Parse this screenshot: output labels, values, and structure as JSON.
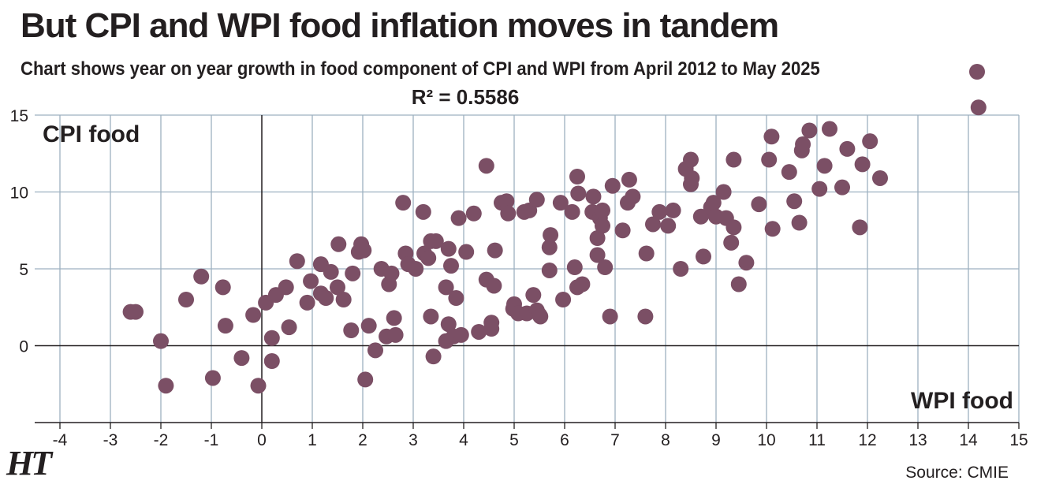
{
  "header": {
    "title": "But CPI and WPI food inflation moves in tandem",
    "subtitle": "Chart shows year on year growth in food component of CPI and WPI from April 2012 to May 2025",
    "r_squared": "R² = 0.5586"
  },
  "footer": {
    "logo": "HT",
    "source": "Source: CMIE"
  },
  "colors": {
    "dot": "#7b4f65",
    "grid": "#9db1c0",
    "axis": "#231f20"
  },
  "chart_data": {
    "type": "scatter",
    "title": "But CPI and WPI food inflation moves in tandem",
    "subtitle": "Chart shows year on year growth in food component of CPI and WPI from April 2012 to May 2025",
    "annotation": "R² = 0.5586",
    "xlabel": "WPI food",
    "ylabel": "CPI food",
    "xlim": [
      -4.5,
      15
    ],
    "ylim": [
      -5,
      15
    ],
    "xticks": [
      -4,
      -3,
      -2,
      -1,
      0,
      1,
      2,
      3,
      4,
      5,
      6,
      7,
      8,
      9,
      10,
      11,
      12,
      13,
      14,
      15
    ],
    "yticks": [
      0,
      5,
      10,
      15
    ],
    "grid": true,
    "legend": "none",
    "series": [
      {
        "points": [
          [
            -2.5,
            2.2
          ],
          [
            -2.6,
            2.2
          ],
          [
            -2.0,
            0.3
          ],
          [
            -1.9,
            -2.6
          ],
          [
            -1.5,
            3.0
          ],
          [
            -1.2,
            4.5
          ],
          [
            -0.97,
            -2.1
          ],
          [
            -0.77,
            3.8
          ],
          [
            -0.72,
            1.3
          ],
          [
            -0.4,
            -0.8
          ],
          [
            -0.17,
            2.0
          ],
          [
            -0.07,
            -2.6
          ],
          [
            0.08,
            2.8
          ],
          [
            0.2,
            0.5
          ],
          [
            0.2,
            -1.0
          ],
          [
            0.28,
            3.3
          ],
          [
            0.48,
            3.8
          ],
          [
            0.54,
            1.2
          ],
          [
            0.7,
            5.5
          ],
          [
            0.9,
            2.8
          ],
          [
            0.97,
            4.2
          ],
          [
            1.17,
            5.3
          ],
          [
            1.17,
            3.4
          ],
          [
            1.27,
            3.1
          ],
          [
            1.37,
            4.8
          ],
          [
            1.5,
            3.8
          ],
          [
            1.52,
            6.6
          ],
          [
            1.62,
            3.0
          ],
          [
            1.77,
            1.0
          ],
          [
            1.8,
            4.7
          ],
          [
            1.92,
            6.1
          ],
          [
            1.97,
            6.6
          ],
          [
            2.02,
            6.2
          ],
          [
            2.05,
            -2.2
          ],
          [
            2.12,
            1.3
          ],
          [
            2.25,
            -0.3
          ],
          [
            2.37,
            5.0
          ],
          [
            2.47,
            0.6
          ],
          [
            2.52,
            4.0
          ],
          [
            2.57,
            4.7
          ],
          [
            2.62,
            1.8
          ],
          [
            2.65,
            0.7
          ],
          [
            2.8,
            9.3
          ],
          [
            2.85,
            6.0
          ],
          [
            2.9,
            5.3
          ],
          [
            3.05,
            5.0
          ],
          [
            3.2,
            8.7
          ],
          [
            3.22,
            6.0
          ],
          [
            3.3,
            5.7
          ],
          [
            3.35,
            1.9
          ],
          [
            3.35,
            6.8
          ],
          [
            3.4,
            -0.7
          ],
          [
            3.45,
            6.8
          ],
          [
            3.65,
            3.8
          ],
          [
            3.65,
            0.3
          ],
          [
            3.7,
            1.4
          ],
          [
            3.7,
            6.3
          ],
          [
            3.75,
            5.2
          ],
          [
            3.8,
            0.6
          ],
          [
            3.85,
            3.1
          ],
          [
            3.9,
            8.3
          ],
          [
            3.95,
            0.7
          ],
          [
            4.05,
            6.1
          ],
          [
            4.2,
            8.6
          ],
          [
            4.3,
            0.9
          ],
          [
            4.45,
            11.7
          ],
          [
            4.45,
            4.3
          ],
          [
            4.55,
            1.1
          ],
          [
            4.55,
            1.5
          ],
          [
            4.6,
            3.9
          ],
          [
            4.62,
            6.2
          ],
          [
            4.75,
            9.3
          ],
          [
            4.85,
            9.4
          ],
          [
            4.88,
            8.6
          ],
          [
            4.98,
            2.4
          ],
          [
            5.0,
            2.7
          ],
          [
            5.08,
            2.1
          ],
          [
            5.2,
            8.7
          ],
          [
            5.25,
            2.1
          ],
          [
            5.3,
            8.8
          ],
          [
            5.38,
            3.3
          ],
          [
            5.45,
            9.5
          ],
          [
            5.45,
            2.3
          ],
          [
            5.5,
            2.0
          ],
          [
            5.52,
            1.9
          ],
          [
            5.7,
            4.9
          ],
          [
            5.7,
            6.4
          ],
          [
            5.72,
            7.2
          ],
          [
            5.92,
            9.3
          ],
          [
            5.97,
            3.0
          ],
          [
            6.15,
            8.7
          ],
          [
            6.2,
            5.1
          ],
          [
            6.25,
            3.8
          ],
          [
            6.25,
            11.0
          ],
          [
            6.27,
            9.9
          ],
          [
            6.35,
            4.0
          ],
          [
            6.55,
            8.7
          ],
          [
            6.57,
            9.7
          ],
          [
            6.65,
            7.0
          ],
          [
            6.65,
            5.9
          ],
          [
            6.7,
            8.3
          ],
          [
            6.75,
            8.8
          ],
          [
            6.75,
            7.8
          ],
          [
            6.8,
            5.1
          ],
          [
            6.9,
            1.9
          ],
          [
            6.95,
            10.4
          ],
          [
            7.15,
            7.5
          ],
          [
            7.25,
            9.3
          ],
          [
            7.28,
            10.8
          ],
          [
            7.35,
            9.7
          ],
          [
            7.6,
            1.9
          ],
          [
            7.62,
            6.0
          ],
          [
            7.75,
            7.9
          ],
          [
            7.88,
            8.7
          ],
          [
            8.05,
            7.8
          ],
          [
            8.15,
            8.8
          ],
          [
            8.3,
            5.0
          ],
          [
            8.4,
            11.5
          ],
          [
            8.5,
            12.1
          ],
          [
            8.5,
            10.5
          ],
          [
            8.52,
            10.9
          ],
          [
            8.7,
            8.4
          ],
          [
            8.75,
            5.8
          ],
          [
            8.9,
            9.0
          ],
          [
            8.95,
            9.3
          ],
          [
            9.0,
            8.4
          ],
          [
            9.15,
            10.0
          ],
          [
            9.2,
            8.3
          ],
          [
            9.3,
            6.7
          ],
          [
            9.35,
            7.7
          ],
          [
            9.35,
            12.1
          ],
          [
            9.45,
            4.0
          ],
          [
            9.6,
            5.4
          ],
          [
            9.85,
            9.2
          ],
          [
            10.05,
            12.1
          ],
          [
            10.1,
            13.6
          ],
          [
            10.12,
            7.6
          ],
          [
            10.45,
            11.3
          ],
          [
            10.55,
            9.4
          ],
          [
            10.65,
            8.0
          ],
          [
            10.7,
            12.7
          ],
          [
            10.72,
            13.1
          ],
          [
            10.85,
            14.0
          ],
          [
            11.05,
            10.2
          ],
          [
            11.15,
            11.7
          ],
          [
            11.25,
            14.1
          ],
          [
            11.5,
            10.3
          ],
          [
            11.6,
            12.8
          ],
          [
            11.85,
            7.7
          ],
          [
            11.9,
            11.8
          ],
          [
            12.05,
            13.3
          ],
          [
            12.25,
            10.9
          ],
          [
            14.2,
            15.5
          ]
        ]
      }
    ]
  }
}
